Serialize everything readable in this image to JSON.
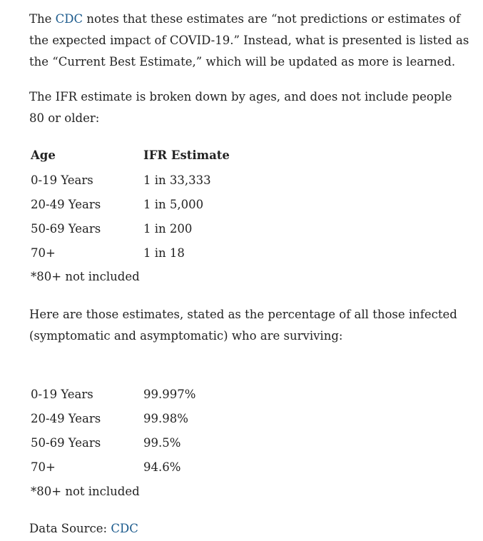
{
  "colors": {
    "text": "#222222",
    "link": "#1b5a8c"
  },
  "para1": {
    "l1_pre": "The ",
    "l1_link": "CDC",
    "l1_post": " notes that these estimates are “not predictions or estimates of",
    "l2": "the expected impact of COVID-19.” Instead, what is presented is listed as",
    "l3": "the “Current Best Estimate,” which will be updated as more is learned."
  },
  "para2": {
    "l1": "The IFR estimate is broken down by ages, and does not include people",
    "l2": "80 or older:"
  },
  "table1": {
    "headers": [
      "Age",
      "IFR Estimate"
    ],
    "rows": [
      [
        "0-19 Years",
        "1 in 33,333"
      ],
      [
        "20-49 Years",
        "1 in 5,000"
      ],
      [
        "50-69 Years",
        "1 in 200"
      ],
      [
        "70+",
        "1 in 18"
      ]
    ],
    "note": "*80+ not included"
  },
  "para3": {
    "l1": "Here are those estimates, stated as the percentage of all those infected",
    "l2": "(symptomatic and asymptomatic) who are surviving:"
  },
  "table2": {
    "rows": [
      [
        "0-19 Years",
        "99.997%"
      ],
      [
        "20-49 Years",
        "99.98%"
      ],
      [
        "50-69 Years",
        "99.5%"
      ],
      [
        "70+",
        "94.6%"
      ]
    ],
    "note": "*80+ not included"
  },
  "source": {
    "label": "Data Source: ",
    "link": "CDC"
  }
}
